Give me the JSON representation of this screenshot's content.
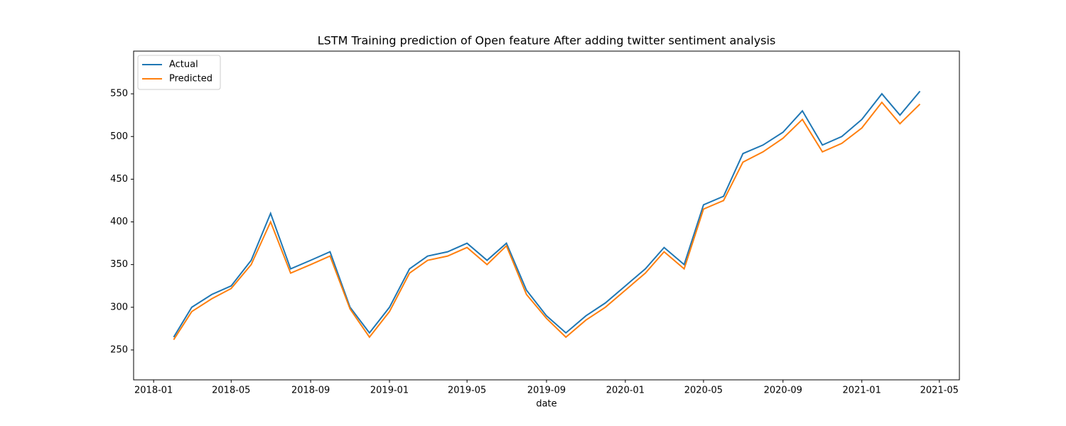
{
  "chart_data": {
    "type": "line",
    "title": "LSTM Training prediction of Open feature After adding twitter sentiment analysis",
    "xlabel": "date",
    "x": [
      "2018-02",
      "2018-03",
      "2018-04",
      "2018-05",
      "2018-06",
      "2018-07",
      "2018-08",
      "2018-09",
      "2018-10",
      "2018-11",
      "2018-12",
      "2019-01",
      "2019-02",
      "2019-03",
      "2019-04",
      "2019-05",
      "2019-06",
      "2019-07",
      "2019-08",
      "2019-09",
      "2019-10",
      "2019-11",
      "2019-12",
      "2020-01",
      "2020-02",
      "2020-03",
      "2020-04",
      "2020-05",
      "2020-06",
      "2020-07",
      "2020-08",
      "2020-09",
      "2020-10",
      "2020-11",
      "2020-12",
      "2021-01",
      "2021-02",
      "2021-03",
      "2021-04"
    ],
    "series": [
      {
        "name": "Actual",
        "color": "#1f77b4",
        "values": [
          265,
          300,
          315,
          325,
          355,
          410,
          345,
          355,
          365,
          300,
          270,
          300,
          345,
          360,
          365,
          375,
          355,
          375,
          320,
          290,
          270,
          290,
          305,
          325,
          345,
          370,
          350,
          420,
          430,
          480,
          490,
          505,
          530,
          490,
          500,
          520,
          550,
          525,
          553
        ]
      },
      {
        "name": "Predicted",
        "color": "#ff7f0e",
        "values": [
          262,
          295,
          310,
          322,
          350,
          400,
          340,
          350,
          360,
          298,
          265,
          295,
          340,
          355,
          360,
          370,
          350,
          372,
          315,
          287,
          265,
          285,
          300,
          320,
          340,
          365,
          345,
          415,
          425,
          470,
          482,
          498,
          520,
          482,
          492,
          510,
          540,
          515,
          538
        ]
      }
    ],
    "xlim": [
      "2017-12",
      "2021-06"
    ],
    "xticks": [
      "2018-01",
      "2018-05",
      "2018-09",
      "2019-01",
      "2019-05",
      "2019-09",
      "2020-01",
      "2020-05",
      "2020-09",
      "2021-01",
      "2021-05"
    ],
    "ylim": [
      215,
      600
    ],
    "yticks": [
      250,
      300,
      350,
      400,
      450,
      500,
      550
    ],
    "legend": "upper left",
    "grid": false
  }
}
